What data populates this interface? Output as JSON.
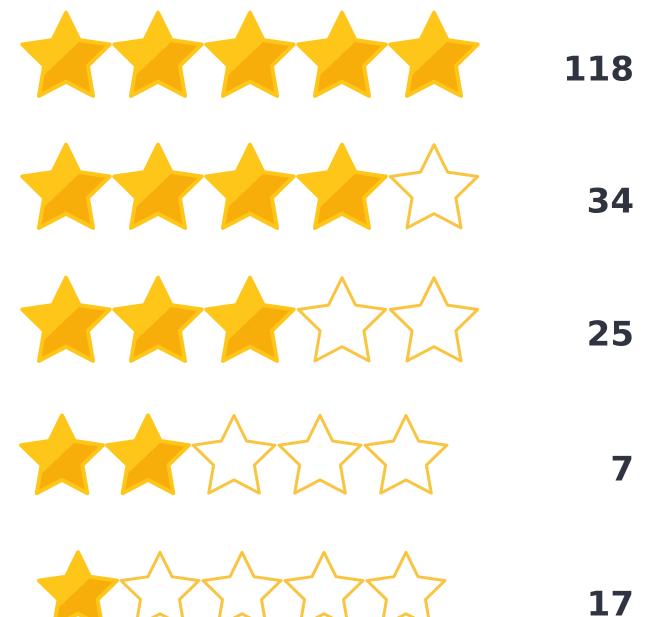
{
  "rows": [
    {
      "stars": 5,
      "count": "118"
    },
    {
      "stars": 4,
      "count": "34"
    },
    {
      "stars": 3,
      "count": "25"
    },
    {
      "stars": 2,
      "count": "7"
    },
    {
      "stars": 1,
      "count": "17"
    }
  ]
}
